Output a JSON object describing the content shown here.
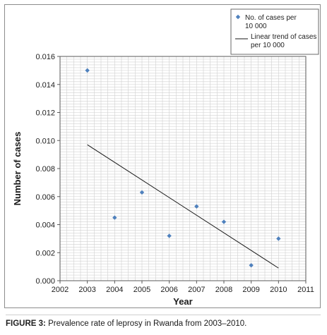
{
  "caption": {
    "lead": "FIGURE 3:",
    "text": " Prevalence rate of leprosy in Rwanda from 2003–2010."
  },
  "colors": {
    "point": "#4f81bd",
    "trend": "#1a1a1a",
    "grid": "#d0d0d0",
    "plot_border": "#595959"
  },
  "chart_data": {
    "type": "scatter",
    "xlabel": "Year",
    "ylabel": "Number of cases",
    "xlim": [
      2002,
      2011
    ],
    "ylim": [
      0,
      0.016
    ],
    "x_ticks": [
      "2002",
      "2003",
      "2004",
      "2005",
      "2006",
      "2007",
      "2008",
      "2009",
      "2010",
      "2011"
    ],
    "y_ticks": [
      "0.000",
      "0.002",
      "0.004",
      "0.006",
      "0.008",
      "0.010",
      "0.012",
      "0.014",
      "0.016"
    ],
    "grid": true,
    "legend_position": "top-right",
    "series": [
      {
        "name": [
          "No. of cases per",
          "10 000"
        ],
        "kind": "points",
        "x": [
          2003,
          2004,
          2005,
          2006,
          2007,
          2008,
          2009,
          2010
        ],
        "y": [
          0.015,
          0.0045,
          0.0063,
          0.0032,
          0.0053,
          0.0042,
          0.0011,
          0.003
        ]
      },
      {
        "name": [
          "Linear trend of cases",
          "per 10 000"
        ],
        "kind": "line",
        "x": [
          2003,
          2010
        ],
        "y": [
          0.0097,
          0.0009
        ]
      }
    ]
  }
}
